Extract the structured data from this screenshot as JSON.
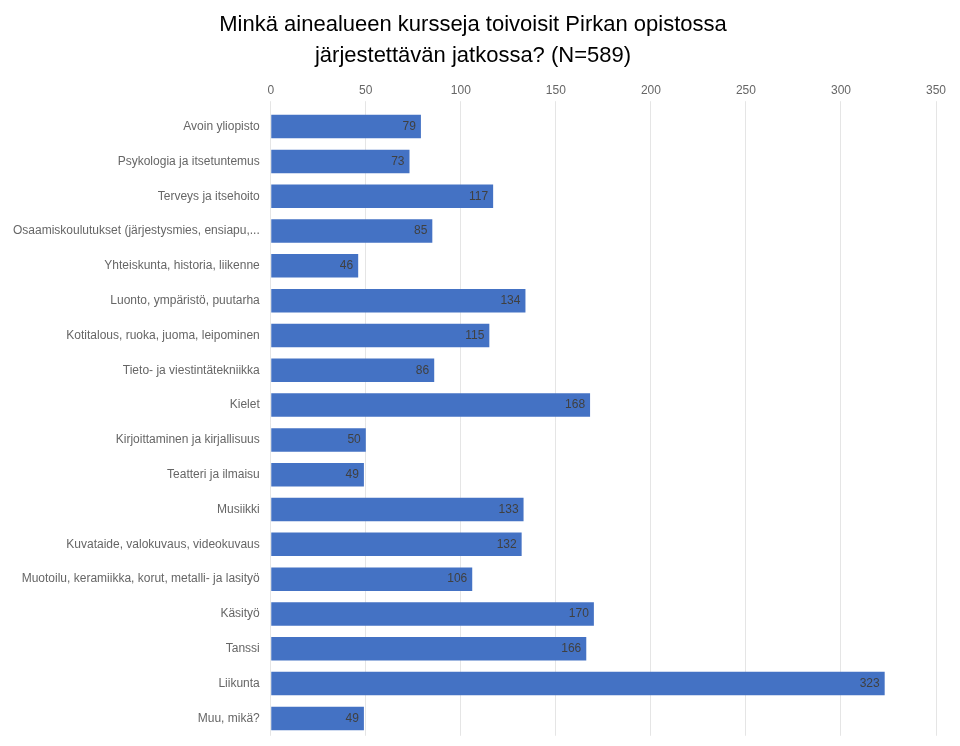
{
  "chart_data": {
    "type": "bar",
    "orientation": "horizontal",
    "title": "Minkä ainealueen kursseja toivoisit Pirkan opistossa",
    "subtitle": "järjestettävän jatkossa? (N=589)",
    "categories": [
      "Avoin yliopisto",
      "Psykologia ja itsetuntemus",
      "Terveys ja itsehoito",
      "Osaamiskoulutukset (järjestysmies, ensiapu,...",
      "Yhteiskunta, historia, liikenne",
      "Luonto, ympäristö, puutarha",
      "Kotitalous, ruoka, juoma, leipominen",
      "Tieto- ja viestintätekniikka",
      "Kielet",
      "Kirjoittaminen ja kirjallisuus",
      "Teatteri ja ilmaisu",
      "Musiikki",
      "Kuvataide, valokuvaus, videokuvaus",
      "Muotoilu, keramiikka, korut, metalli- ja lasityö",
      "Käsityö",
      "Tanssi",
      "Liikunta",
      "Muu, mikä?"
    ],
    "values": [
      79,
      73,
      117,
      85,
      46,
      134,
      115,
      86,
      168,
      50,
      49,
      133,
      132,
      106,
      170,
      166,
      323,
      49
    ],
    "color": "#4472C4",
    "xlim": [
      0,
      350
    ],
    "xticks": [
      0,
      50,
      100,
      150,
      200,
      250,
      300,
      350
    ],
    "grid": true,
    "data_labels": true
  }
}
